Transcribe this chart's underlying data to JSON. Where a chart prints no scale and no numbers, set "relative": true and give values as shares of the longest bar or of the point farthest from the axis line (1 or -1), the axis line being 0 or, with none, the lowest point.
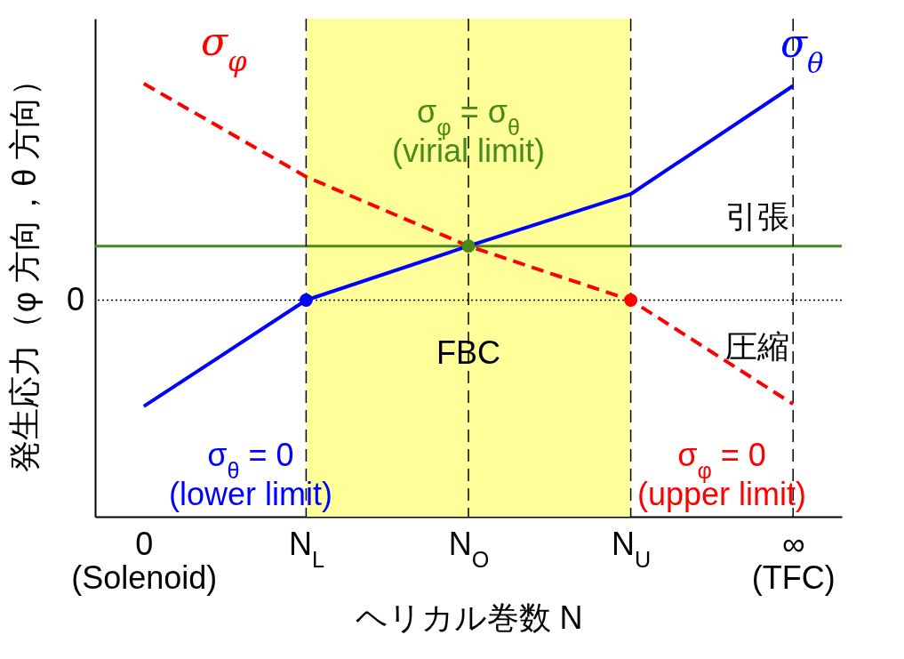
{
  "chart_data": {
    "type": "line",
    "relative": true,
    "xlabel": "ヘリカル巻数 N",
    "ylabel": "発生応力（φ 方向，θ 方向）",
    "categories": [
      "0\n(Solenoid)",
      "N$_{L}$",
      "N$_{O}$",
      "N$_{U}$",
      "∞\n(TFC)"
    ],
    "series": [
      {
        "name": "σ$_{φ}$",
        "color": "#ff0000",
        "line_style": "dashed",
        "values": [
          1,
          0.57,
          0.25,
          0,
          -0.48
        ]
      },
      {
        "name": "σ$_{θ}$",
        "color": "#0000ff",
        "line_style": "solid",
        "values": [
          -0.49,
          0,
          0.25,
          0.49,
          0.99
        ]
      },
      {
        "type": "scatter",
        "color": "#0000ff",
        "marker": "circle",
        "x": [
          "N$_{L}$"
        ],
        "values": [
          0
        ]
      },
      {
        "type": "scatter",
        "color": "#4a8a1c",
        "marker": "circle",
        "x": [
          "N$_{O}$"
        ],
        "values": [
          0.25
        ]
      },
      {
        "type": "scatter",
        "color": "#ff0000",
        "marker": "circle",
        "x": [
          "N$_{U}$"
        ],
        "values": [
          0
        ]
      }
    ],
    "ref_lines": [
      {
        "axis": "y",
        "value": 0,
        "label": "0",
        "color": "#000000",
        "line_style": "dotted"
      },
      {
        "axis": "y",
        "value": 0.25,
        "color": "#4a8a1c",
        "line_style": "solid"
      },
      {
        "axis": "x",
        "value": "N$_{L}$",
        "color": "#000000",
        "line_style": "dashed"
      },
      {
        "axis": "x",
        "value": "N$_{O}$",
        "color": "#000000",
        "line_style": "dashed"
      },
      {
        "axis": "x",
        "value": "N$_{U}$",
        "color": "#000000",
        "line_style": "dashed"
      },
      {
        "axis": "x",
        "value": "∞\n(TFC)",
        "color": "#000000",
        "line_style": "dashed"
      }
    ],
    "bands": [
      {
        "axis": "x",
        "from": "N$_{L}$",
        "to": "N$_{U}$",
        "color": "#ffff99"
      }
    ],
    "annotations": [
      {
        "text": "σ$_{φ}$ = σ$_{θ}$\n(virial limit)",
        "x": "N$_{O}$",
        "y": 0.25
      },
      "σ$_{θ}$ = 0\n(lower limit)",
      "σ$_{φ}$ = 0\n(upper limit)",
      "FBC",
      "引張",
      "圧縮"
    ]
  }
}
